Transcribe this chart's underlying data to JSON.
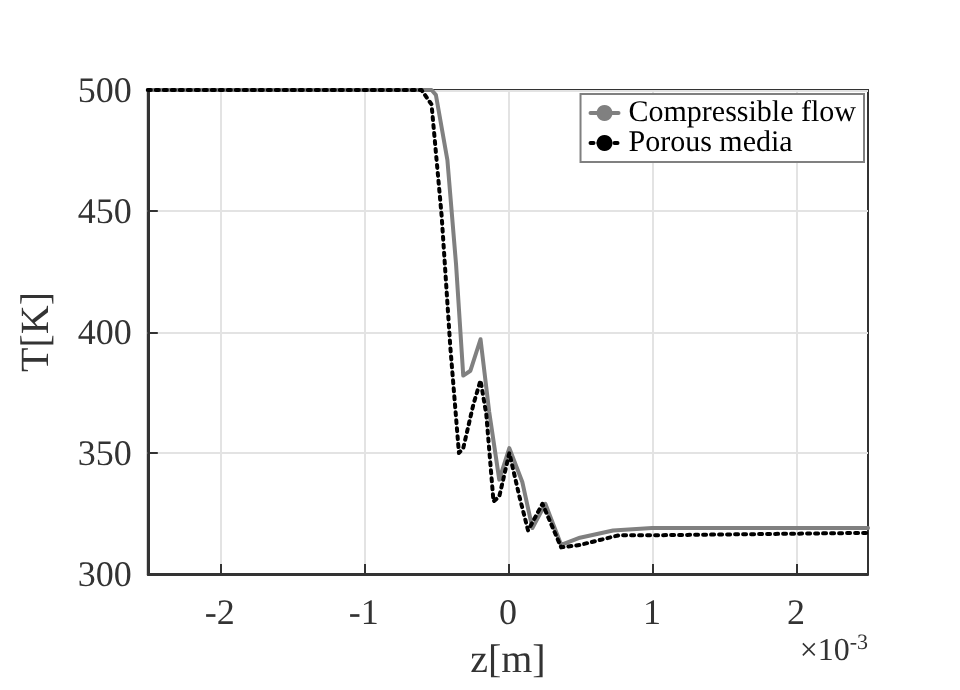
{
  "chart_data": {
    "type": "line",
    "xlabel": "z[m]",
    "ylabel": "T[K]",
    "annotations": [
      "×10$^{-3}$"
    ],
    "xlim": [
      -2.5,
      2.5
    ],
    "xticks": [
      -2,
      -1,
      0,
      1,
      2
    ],
    "ylim": [
      300,
      500
    ],
    "yticks": [
      300,
      350,
      400,
      450,
      500
    ],
    "grid": true,
    "legend": "top right",
    "marker": "none",
    "series": [
      {
        "name": "Compressible flow",
        "color": "#808080",
        "line_style": "solid",
        "x": [
          -2.5,
          -0.53,
          -0.5,
          -0.42,
          -0.36,
          -0.31,
          -0.26,
          -0.19,
          -0.13,
          -0.06,
          0.01,
          0.1,
          0.17,
          0.26,
          0.37,
          0.5,
          0.73,
          1.0,
          2.5
        ],
        "values": [
          500,
          500,
          498,
          471,
          428,
          382,
          384,
          397,
          367,
          339,
          352,
          338,
          319,
          329,
          312,
          315,
          318,
          319,
          319
        ]
      },
      {
        "name": "Porous media",
        "color": "#000000",
        "line_style": "dotted",
        "x": [
          -2.5,
          -0.6,
          -0.53,
          -0.46,
          -0.4,
          -0.34,
          -0.31,
          -0.24,
          -0.19,
          -0.15,
          -0.1,
          -0.06,
          0.01,
          0.08,
          0.14,
          0.24,
          0.37,
          0.5,
          0.77,
          1.0,
          2.5
        ],
        "values": [
          500,
          500,
          494,
          448,
          394,
          350,
          352,
          370,
          380,
          366,
          330,
          332,
          350,
          332,
          318,
          329,
          311,
          312,
          316,
          316,
          317
        ]
      }
    ]
  }
}
